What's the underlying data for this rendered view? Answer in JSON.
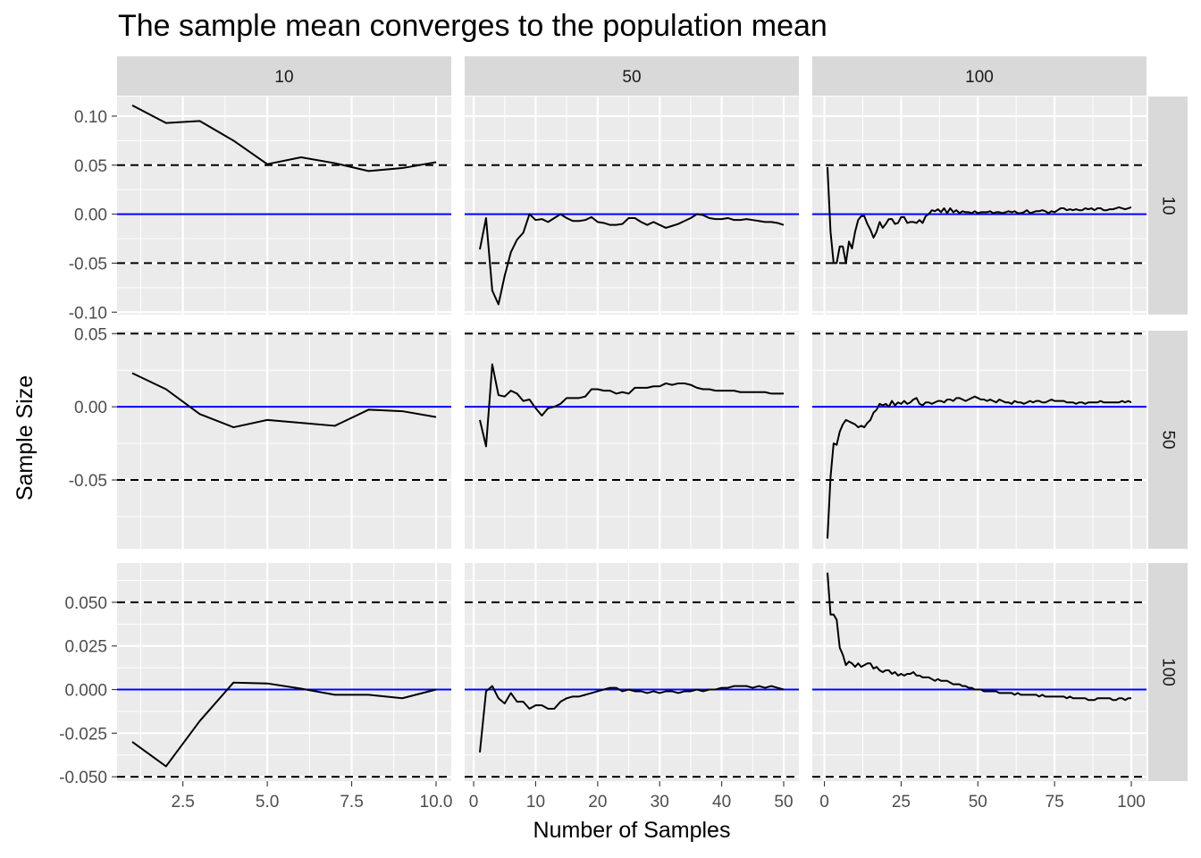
{
  "chart_data": {
    "type": "line",
    "title": "The sample mean converges to the population mean",
    "xlabel": "Number of Samples",
    "ylabel": "Sample Size",
    "col_facet_labels": [
      "10",
      "50",
      "100"
    ],
    "row_facet_labels": [
      "10",
      "50",
      "100"
    ],
    "grid": true,
    "reference_lines": {
      "population_mean": 0,
      "population_mean_color": "#0000ff",
      "bounds_style": "dashed",
      "bounds_color": "#000000"
    },
    "colors": {
      "panel_background": "#ebebeb",
      "strip_background": "#d9d9d9",
      "gridline": "#ffffff",
      "series_line": "#000000"
    },
    "columns": [
      {
        "label": "10",
        "xlim": [
          0.55,
          10.45
        ],
        "xticks": [
          "2.5",
          "5.0",
          "7.5",
          "10.0"
        ],
        "xtick_values": [
          2.5,
          5,
          7.5,
          10
        ],
        "xminor": [
          1.25,
          3.75,
          6.25,
          8.75
        ]
      },
      {
        "label": "50",
        "xlim": [
          -1.45,
          52.45
        ],
        "xticks": [
          "0",
          "10",
          "20",
          "30",
          "40",
          "50"
        ],
        "xtick_values": [
          0,
          10,
          20,
          30,
          40,
          50
        ],
        "xminor": [
          5,
          15,
          25,
          35,
          45
        ]
      },
      {
        "label": "100",
        "xlim": [
          -3.95,
          104.95
        ],
        "xticks": [
          "0",
          "25",
          "50",
          "75",
          "100"
        ],
        "xtick_values": [
          0,
          25,
          50,
          75,
          100
        ],
        "xminor": [
          12.5,
          37.5,
          62.5,
          87.5
        ]
      }
    ],
    "rows": [
      {
        "label": "10",
        "ylim": [
          -0.1025,
          0.12
        ],
        "yticks": [
          "0.10",
          "0.05",
          "0.00",
          "-0.05",
          "-0.10"
        ],
        "ytick_values": [
          0.1,
          0.05,
          0.0,
          -0.05,
          -0.1
        ],
        "yminor": [
          0.075,
          0.025,
          -0.025,
          -0.075
        ],
        "bounds": [
          0.05,
          -0.05
        ]
      },
      {
        "label": "50",
        "ylim": [
          -0.097,
          0.052
        ],
        "yticks": [
          "0.05",
          "0.00",
          "-0.05"
        ],
        "ytick_values": [
          0.05,
          0.0,
          -0.05
        ],
        "yminor": [
          0.025,
          -0.025,
          -0.075
        ],
        "bounds": [
          0.05,
          -0.05
        ]
      },
      {
        "label": "100",
        "ylim": [
          -0.0525,
          0.0725
        ],
        "yticks": [
          "0.050",
          "0.025",
          "0.000",
          "-0.025",
          "-0.050"
        ],
        "ytick_values": [
          0.05,
          0.025,
          0.0,
          -0.025,
          -0.05
        ],
        "yminor": [
          0.0625,
          0.0375,
          0.0125,
          -0.0125,
          -0.0375
        ],
        "bounds": [
          0.05,
          -0.05
        ]
      }
    ],
    "panels": [
      {
        "row": "10",
        "col": "10",
        "x": [
          1,
          2,
          3,
          4,
          5,
          6,
          7,
          8,
          9,
          10
        ],
        "y": [
          0.111,
          0.093,
          0.095,
          0.075,
          0.051,
          0.058,
          0.052,
          0.044,
          0.047,
          0.053
        ]
      },
      {
        "row": "10",
        "col": "50",
        "x": [
          1,
          2,
          3,
          4,
          5,
          6,
          7,
          8,
          9,
          10,
          11,
          12,
          13,
          14,
          15,
          16,
          17,
          18,
          19,
          20,
          21,
          22,
          23,
          24,
          25,
          26,
          27,
          28,
          29,
          30,
          31,
          32,
          33,
          34,
          35,
          36,
          37,
          38,
          39,
          40,
          41,
          42,
          43,
          44,
          45,
          46,
          47,
          48,
          49,
          50
        ],
        "y": [
          -0.036,
          -0.004,
          -0.078,
          -0.092,
          -0.063,
          -0.039,
          -0.026,
          -0.019,
          0.0,
          -0.006,
          -0.005,
          -0.008,
          -0.004,
          0.0,
          -0.004,
          -0.007,
          -0.007,
          -0.006,
          -0.003,
          -0.008,
          -0.009,
          -0.011,
          -0.011,
          -0.01,
          -0.004,
          -0.004,
          -0.008,
          -0.011,
          -0.008,
          -0.011,
          -0.014,
          -0.012,
          -0.01,
          -0.007,
          -0.004,
          0.0,
          -0.001,
          -0.004,
          -0.005,
          -0.005,
          -0.004,
          -0.006,
          -0.006,
          -0.005,
          -0.006,
          -0.007,
          -0.008,
          -0.008,
          -0.009,
          -0.011
        ]
      },
      {
        "row": "10",
        "col": "100",
        "x": [
          1,
          2,
          3,
          4,
          5,
          6,
          7,
          8,
          9,
          10,
          11,
          12,
          13,
          14,
          15,
          16,
          17,
          18,
          19,
          20,
          21,
          22,
          23,
          24,
          25,
          26,
          27,
          28,
          29,
          30,
          31,
          32,
          33,
          34,
          35,
          36,
          37,
          38,
          39,
          40,
          41,
          42,
          43,
          44,
          45,
          46,
          47,
          48,
          49,
          50,
          51,
          52,
          53,
          54,
          55,
          56,
          57,
          58,
          59,
          60,
          61,
          62,
          63,
          64,
          65,
          66,
          67,
          68,
          69,
          70,
          71,
          72,
          73,
          74,
          75,
          76,
          77,
          78,
          79,
          80,
          81,
          82,
          83,
          84,
          85,
          86,
          87,
          88,
          89,
          90,
          91,
          92,
          93,
          94,
          95,
          96,
          97,
          98,
          99,
          100
        ],
        "y": [
          0.048,
          -0.018,
          -0.05,
          -0.05,
          -0.033,
          -0.033,
          -0.05,
          -0.028,
          -0.035,
          -0.018,
          -0.006,
          -0.002,
          -0.002,
          -0.01,
          -0.016,
          -0.024,
          -0.018,
          -0.008,
          -0.014,
          -0.01,
          -0.005,
          -0.005,
          -0.01,
          -0.009,
          -0.003,
          -0.003,
          -0.009,
          -0.008,
          -0.008,
          -0.009,
          -0.006,
          -0.009,
          -0.002,
          0.0,
          0.004,
          0.003,
          0.005,
          0.002,
          0.006,
          0.001,
          0.006,
          0.002,
          0.004,
          0.001,
          0.003,
          0.002,
          0.002,
          0.001,
          0.003,
          0.001,
          0.002,
          0.002,
          0.002,
          0.003,
          0.001,
          0.002,
          0.002,
          0.001,
          0.002,
          0.003,
          0.002,
          0.003,
          0.001,
          0.001,
          0.002,
          0.004,
          0.001,
          0.002,
          0.003,
          0.003,
          0.004,
          0.003,
          0.001,
          0.003,
          0.002,
          0.004,
          0.006,
          0.006,
          0.004,
          0.005,
          0.004,
          0.005,
          0.004,
          0.004,
          0.006,
          0.005,
          0.006,
          0.004,
          0.006,
          0.006,
          0.004,
          0.004,
          0.005,
          0.005,
          0.006,
          0.007,
          0.006,
          0.005,
          0.006,
          0.007
        ]
      },
      {
        "row": "50",
        "col": "10",
        "x": [
          1,
          2,
          3,
          4,
          5,
          6,
          7,
          8,
          9,
          10
        ],
        "y": [
          0.023,
          0.012,
          -0.005,
          -0.014,
          -0.009,
          -0.011,
          -0.013,
          -0.002,
          -0.003,
          -0.007
        ]
      },
      {
        "row": "50",
        "col": "50",
        "x": [
          1,
          2,
          3,
          4,
          5,
          6,
          7,
          8,
          9,
          10,
          11,
          12,
          13,
          14,
          15,
          16,
          17,
          18,
          19,
          20,
          21,
          22,
          23,
          24,
          25,
          26,
          27,
          28,
          29,
          30,
          31,
          32,
          33,
          34,
          35,
          36,
          37,
          38,
          39,
          40,
          41,
          42,
          43,
          44,
          45,
          46,
          47,
          48,
          49,
          50
        ],
        "y": [
          -0.009,
          -0.027,
          0.029,
          0.008,
          0.007,
          0.011,
          0.009,
          0.004,
          0.005,
          -0.001,
          -0.006,
          -0.001,
          0.0,
          0.002,
          0.006,
          0.006,
          0.006,
          0.007,
          0.012,
          0.012,
          0.011,
          0.011,
          0.009,
          0.01,
          0.009,
          0.013,
          0.013,
          0.013,
          0.014,
          0.014,
          0.016,
          0.015,
          0.016,
          0.016,
          0.015,
          0.013,
          0.012,
          0.012,
          0.011,
          0.011,
          0.011,
          0.011,
          0.01,
          0.01,
          0.01,
          0.01,
          0.01,
          0.009,
          0.009,
          0.009
        ]
      },
      {
        "row": "50",
        "col": "100",
        "x": [
          1,
          2,
          3,
          4,
          5,
          6,
          7,
          8,
          9,
          10,
          11,
          12,
          13,
          14,
          15,
          16,
          17,
          18,
          19,
          20,
          21,
          22,
          23,
          24,
          25,
          26,
          27,
          28,
          29,
          30,
          31,
          32,
          33,
          34,
          35,
          36,
          37,
          38,
          39,
          40,
          41,
          42,
          43,
          44,
          45,
          46,
          47,
          48,
          49,
          50,
          51,
          52,
          53,
          54,
          55,
          56,
          57,
          58,
          59,
          60,
          61,
          62,
          63,
          64,
          65,
          66,
          67,
          68,
          69,
          70,
          71,
          72,
          73,
          74,
          75,
          76,
          77,
          78,
          79,
          80,
          81,
          82,
          83,
          84,
          85,
          86,
          87,
          88,
          89,
          90,
          91,
          92,
          93,
          94,
          95,
          96,
          97,
          98,
          99,
          100
        ],
        "y": [
          -0.09,
          -0.048,
          -0.025,
          -0.026,
          -0.017,
          -0.012,
          -0.009,
          -0.01,
          -0.011,
          -0.012,
          -0.014,
          -0.013,
          -0.014,
          -0.011,
          -0.009,
          -0.004,
          -0.002,
          0.002,
          0.001,
          0.002,
          0.0,
          0.004,
          0.001,
          0.003,
          0.002,
          0.004,
          0.002,
          0.003,
          0.005,
          0.006,
          0.002,
          0.001,
          0.003,
          0.003,
          0.002,
          0.003,
          0.004,
          0.004,
          0.003,
          0.005,
          0.005,
          0.004,
          0.006,
          0.006,
          0.005,
          0.004,
          0.005,
          0.006,
          0.007,
          0.006,
          0.005,
          0.005,
          0.004,
          0.005,
          0.004,
          0.003,
          0.005,
          0.004,
          0.003,
          0.003,
          0.002,
          0.004,
          0.003,
          0.003,
          0.002,
          0.003,
          0.004,
          0.003,
          0.004,
          0.004,
          0.003,
          0.003,
          0.004,
          0.005,
          0.004,
          0.004,
          0.004,
          0.004,
          0.003,
          0.003,
          0.003,
          0.002,
          0.003,
          0.003,
          0.002,
          0.003,
          0.003,
          0.003,
          0.003,
          0.004,
          0.003,
          0.003,
          0.003,
          0.003,
          0.003,
          0.003,
          0.004,
          0.003,
          0.004,
          0.003
        ]
      },
      {
        "row": "100",
        "col": "10",
        "x": [
          1,
          2,
          3,
          4,
          5,
          6,
          7,
          8,
          9,
          10
        ],
        "y": [
          -0.03,
          -0.044,
          -0.018,
          0.004,
          0.0035,
          0.0005,
          -0.003,
          -0.003,
          -0.005,
          0.0
        ]
      },
      {
        "row": "100",
        "col": "50",
        "x": [
          1,
          2,
          3,
          4,
          5,
          6,
          7,
          8,
          9,
          10,
          11,
          12,
          13,
          14,
          15,
          16,
          17,
          18,
          19,
          20,
          21,
          22,
          23,
          24,
          25,
          26,
          27,
          28,
          29,
          30,
          31,
          32,
          33,
          34,
          35,
          36,
          37,
          38,
          39,
          40,
          41,
          42,
          43,
          44,
          45,
          46,
          47,
          48,
          49,
          50
        ],
        "y": [
          -0.036,
          -0.001,
          0.002,
          -0.005,
          -0.008,
          -0.002,
          -0.007,
          -0.007,
          -0.011,
          -0.009,
          -0.009,
          -0.011,
          -0.011,
          -0.007,
          -0.005,
          -0.004,
          -0.004,
          -0.003,
          -0.002,
          -0.001,
          0.0,
          0.001,
          0.001,
          -0.001,
          0.0,
          -0.001,
          -0.001,
          -0.002,
          -0.001,
          -0.002,
          -0.001,
          -0.001,
          -0.002,
          -0.001,
          -0.001,
          0.0,
          -0.001,
          0.0,
          0.0,
          0.001,
          0.001,
          0.002,
          0.002,
          0.002,
          0.001,
          0.002,
          0.001,
          0.002,
          0.001,
          0.0
        ]
      },
      {
        "row": "100",
        "col": "100",
        "x": [
          1,
          2,
          3,
          4,
          5,
          6,
          7,
          8,
          9,
          10,
          11,
          12,
          13,
          14,
          15,
          16,
          17,
          18,
          19,
          20,
          21,
          22,
          23,
          24,
          25,
          26,
          27,
          28,
          29,
          30,
          31,
          32,
          33,
          34,
          35,
          36,
          37,
          38,
          39,
          40,
          41,
          42,
          43,
          44,
          45,
          46,
          47,
          48,
          49,
          50,
          51,
          52,
          53,
          54,
          55,
          56,
          57,
          58,
          59,
          60,
          61,
          62,
          63,
          64,
          65,
          66,
          67,
          68,
          69,
          70,
          71,
          72,
          73,
          74,
          75,
          76,
          77,
          78,
          79,
          80,
          81,
          82,
          83,
          84,
          85,
          86,
          87,
          88,
          89,
          90,
          91,
          92,
          93,
          94,
          95,
          96,
          97,
          98,
          99,
          100
        ],
        "y": [
          0.067,
          0.043,
          0.043,
          0.04,
          0.024,
          0.02,
          0.014,
          0.016,
          0.015,
          0.013,
          0.015,
          0.013,
          0.014,
          0.015,
          0.015,
          0.012,
          0.013,
          0.011,
          0.01,
          0.011,
          0.011,
          0.009,
          0.01,
          0.008,
          0.009,
          0.008,
          0.009,
          0.009,
          0.01,
          0.008,
          0.008,
          0.007,
          0.007,
          0.007,
          0.006,
          0.005,
          0.006,
          0.005,
          0.005,
          0.005,
          0.004,
          0.003,
          0.003,
          0.003,
          0.002,
          0.002,
          0.001,
          0.001,
          0.0,
          0.0,
          0.0,
          -0.001,
          -0.001,
          -0.001,
          -0.001,
          -0.001,
          -0.002,
          -0.002,
          -0.002,
          -0.002,
          -0.002,
          -0.003,
          -0.002,
          -0.003,
          -0.003,
          -0.003,
          -0.003,
          -0.003,
          -0.003,
          -0.004,
          -0.003,
          -0.004,
          -0.004,
          -0.004,
          -0.004,
          -0.004,
          -0.004,
          -0.004,
          -0.005,
          -0.004,
          -0.005,
          -0.005,
          -0.005,
          -0.005,
          -0.005,
          -0.006,
          -0.006,
          -0.006,
          -0.005,
          -0.005,
          -0.005,
          -0.005,
          -0.005,
          -0.006,
          -0.006,
          -0.005,
          -0.005,
          -0.006,
          -0.005,
          -0.005
        ]
      }
    ]
  }
}
